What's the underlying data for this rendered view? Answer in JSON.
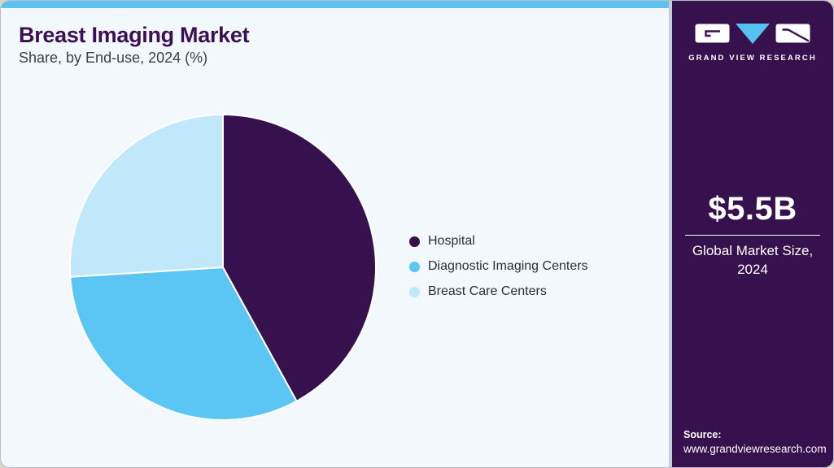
{
  "header": {
    "title": "Breast Imaging Market",
    "subtitle": "Share, by End-use, 2024 (%)"
  },
  "chart_data": {
    "type": "pie",
    "title": "Breast Imaging Market Share, by End-use, 2024 (%)",
    "categories": [
      "Hospital",
      "Diagnostic Imaging Centers",
      "Breast Care Centers"
    ],
    "values": [
      42,
      32,
      26
    ],
    "unit": "%",
    "colors": [
      "#36114d",
      "#5bc6f3",
      "#c0e8fa"
    ],
    "start_angle_deg": 0,
    "direction": "clockwise",
    "legend_position": "right",
    "slice_border_color": "#ffffff"
  },
  "legend": {
    "items": [
      {
        "label": "Hospital",
        "color": "#36114d"
      },
      {
        "label": "Diagnostic Imaging Centers",
        "color": "#5bc6f3"
      },
      {
        "label": "Breast Care Centers",
        "color": "#c0e8fa"
      }
    ]
  },
  "sidebar": {
    "logo_wordmark": "GRAND VIEW RESEARCH",
    "market_size_value": "$5.5B",
    "market_size_label": "Global Market Size, 2024",
    "source_label": "Source:",
    "source_url": "www.grandviewresearch.com"
  },
  "theme": {
    "topbar_blue": "#5ec3ef",
    "sidebar_purple": "#36114d",
    "title_purple": "#3a1053",
    "main_background": "#f3f8fd",
    "logo_triangle_blue": "#56c0ee"
  }
}
